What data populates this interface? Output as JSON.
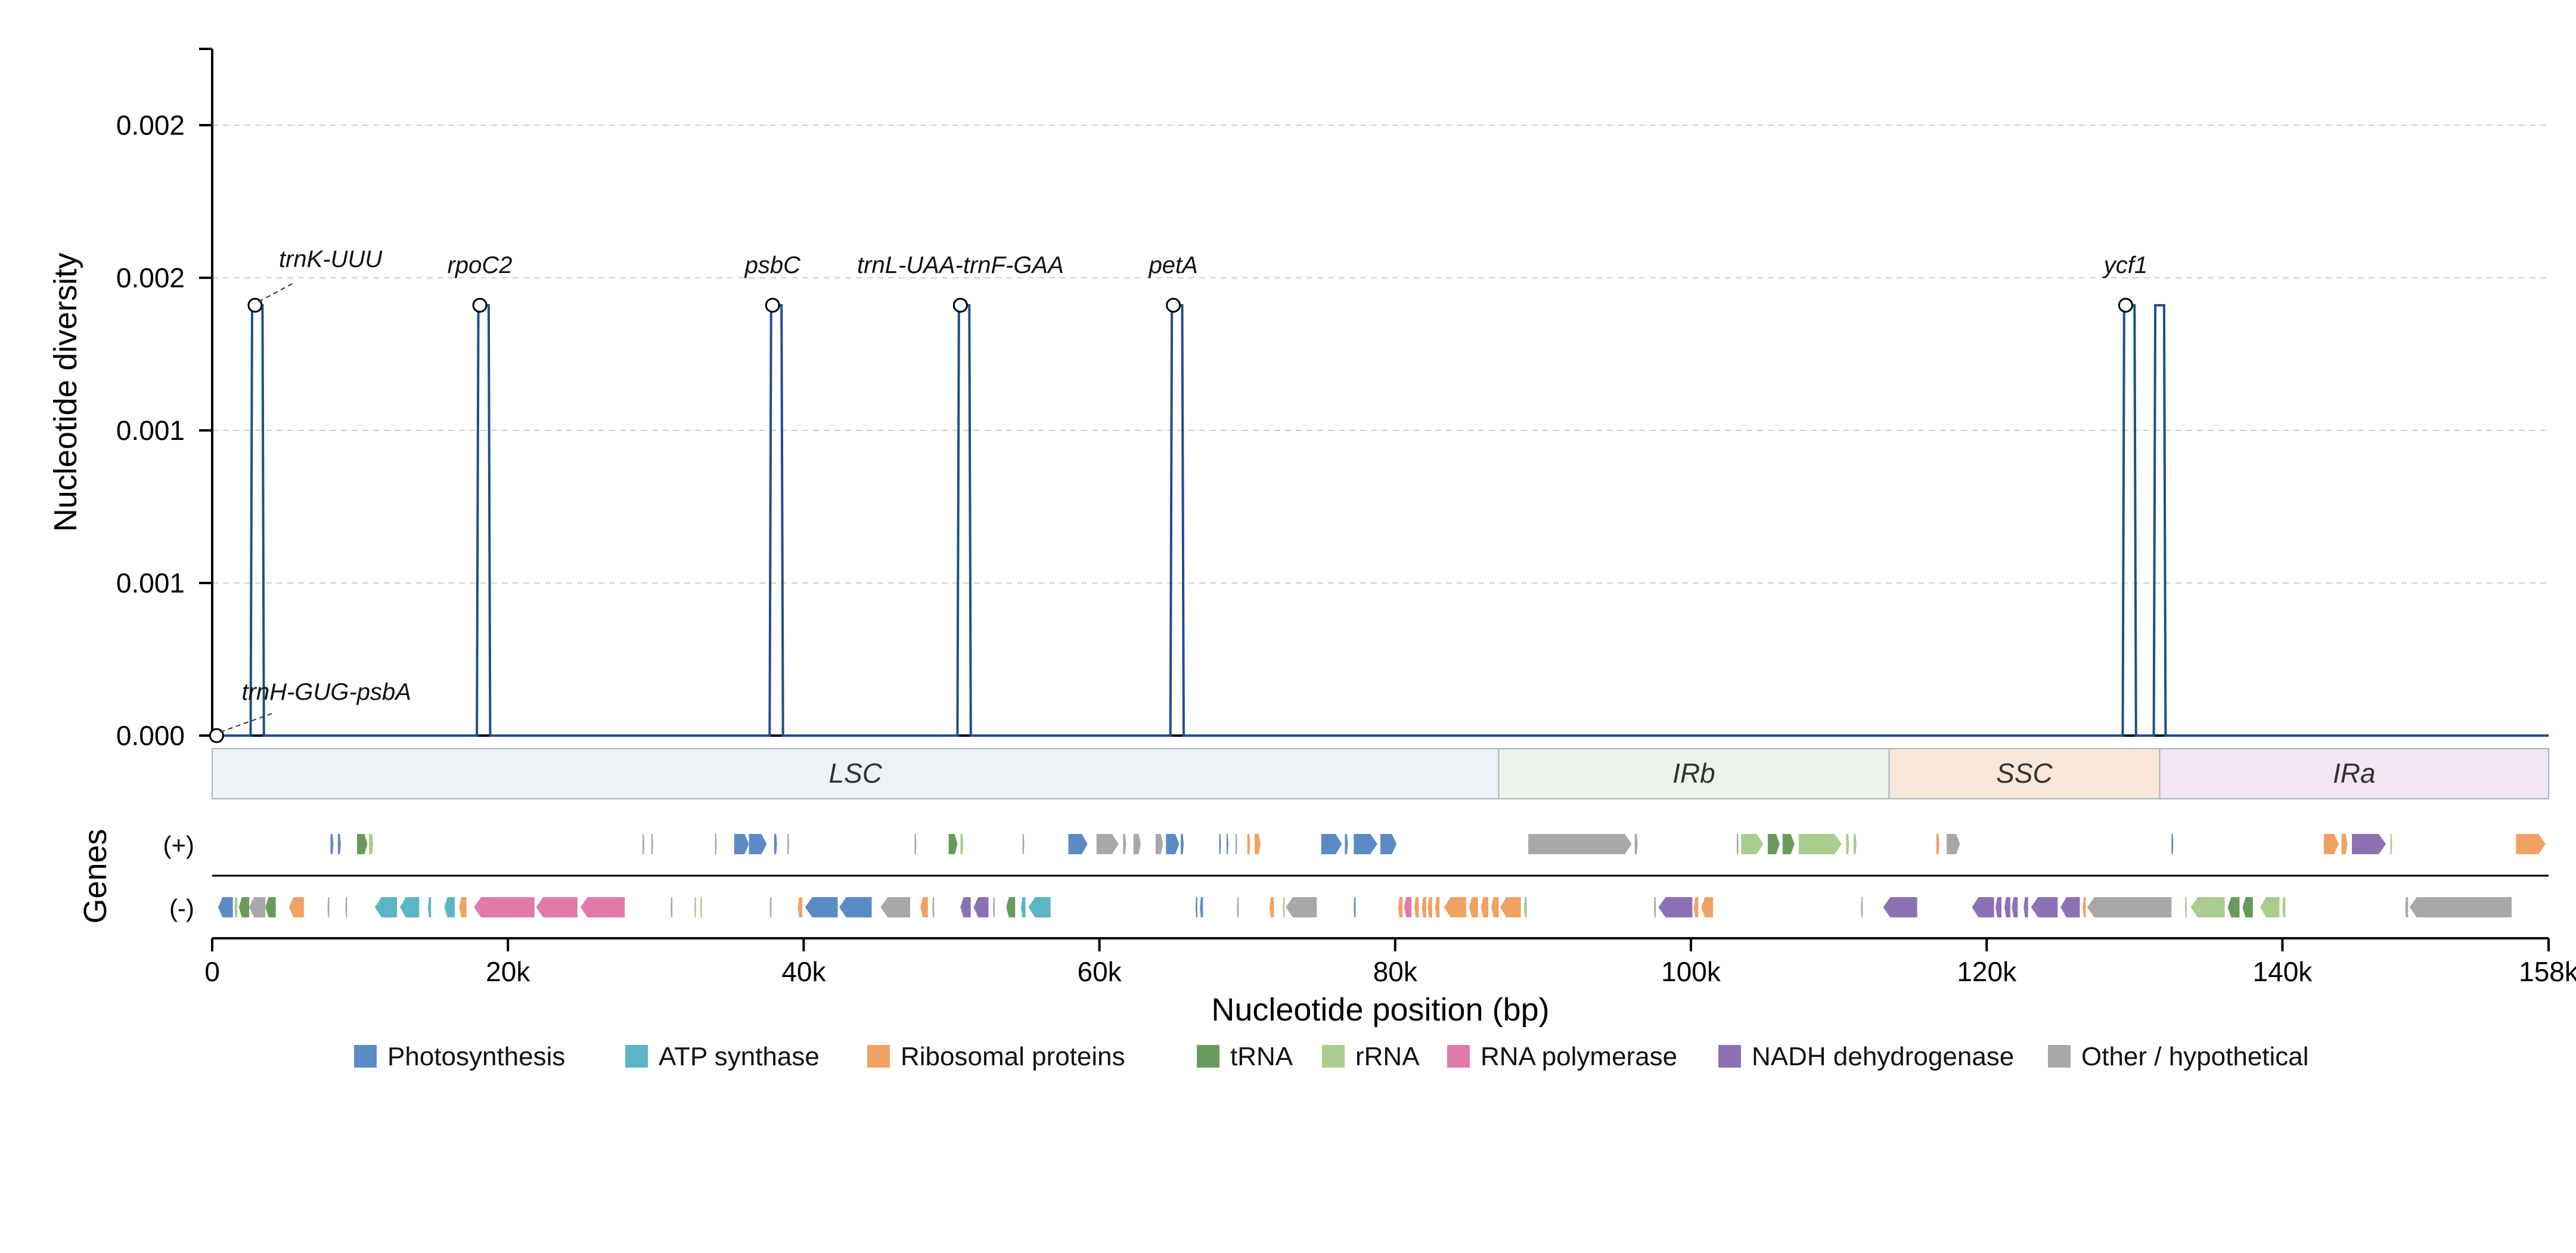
{
  "chart_data": {
    "type": "line",
    "ylabel": "Nucleotide diversity",
    "xlabel": "Nucleotide position (bp)",
    "genes_label": "Genes",
    "strand_plus_label": "(+)",
    "strand_minus_label": "(-)",
    "xlim": [
      0,
      158000
    ],
    "ylim": [
      0,
      0.00225
    ],
    "y_ticks": [
      0,
      0.0005,
      0.001,
      0.0015,
      0.002
    ],
    "y_tick_labels": [
      "0.000",
      "0.001",
      "0.001",
      "0.002",
      "0.002"
    ],
    "x_ticks": [
      0,
      20000,
      40000,
      60000,
      80000,
      100000,
      120000,
      140000,
      158000
    ],
    "x_tick_labels": [
      "0",
      "20k",
      "40k",
      "60k",
      "80k",
      "100k",
      "120k",
      "140k",
      "158k"
    ],
    "grid": "horizontal-dashed",
    "line_color": "#1f4e8c",
    "x": [
      0,
      2600,
      2700,
      3400,
      3500,
      17900,
      18000,
      18700,
      18800,
      37700,
      37800,
      38500,
      38600,
      50400,
      50500,
      51200,
      51300,
      64800,
      64900,
      65600,
      65700,
      129200,
      129300,
      130000,
      130100,
      131300,
      131400,
      132000,
      132100,
      158000
    ],
    "y": [
      0,
      0,
      0.00141,
      0.00141,
      0,
      0,
      0.00141,
      0.00141,
      0,
      0,
      0.00141,
      0.00141,
      0,
      0,
      0.00141,
      0.00141,
      0,
      0,
      0.00141,
      0.00141,
      0,
      0,
      0.00141,
      0.00141,
      0,
      0,
      0.00141,
      0.00141,
      0,
      0
    ],
    "peaks": [
      {
        "label": "trnK-UUU",
        "x": 2900,
        "y": 0.00141
      },
      {
        "label": "rpoC2",
        "x": 18100,
        "y": 0.00141
      },
      {
        "label": "psbC",
        "x": 37900,
        "y": 0.00141
      },
      {
        "label": "trnL-UAA-trnF-GAA",
        "x": 50600,
        "y": 0.00141
      },
      {
        "label": "petA",
        "x": 65000,
        "y": 0.00141
      },
      {
        "label": "ycf1",
        "x": 129400,
        "y": 0.00141
      },
      {
        "label": "trnH-GUG-psbA",
        "x": 300,
        "y": 0
      }
    ],
    "regions": [
      {
        "name": "LSC",
        "start": 0,
        "end": 87000,
        "color": "#eef2f6"
      },
      {
        "name": "IRb",
        "start": 87000,
        "end": 113400,
        "color": "#edf3ea"
      },
      {
        "name": "SSC",
        "start": 113400,
        "end": 131700,
        "color": "#f8e7d8"
      },
      {
        "name": "IRa",
        "start": 131700,
        "end": 158000,
        "color": "#f1e6f1"
      }
    ],
    "legend_position": "bottom-center",
    "legend": [
      {
        "key": "photo",
        "name": "Photosynthesis",
        "color": "#5b8bc4"
      },
      {
        "key": "atp",
        "name": "ATP synthase",
        "color": "#5bb5c4"
      },
      {
        "key": "ribo",
        "name": "Ribosomal proteins",
        "color": "#f0a262"
      },
      {
        "key": "trna",
        "name": "tRNA",
        "color": "#6a9a5b"
      },
      {
        "key": "rrna",
        "name": "rRNA",
        "color": "#a9cd8c"
      },
      {
        "key": "rnap",
        "name": "RNA polymerase",
        "color": "#e07aa8"
      },
      {
        "key": "ndh",
        "name": "NADH dehydrogenase",
        "color": "#8c72b5"
      },
      {
        "key": "other",
        "name": "Other / hypothetical",
        "color": "#a8a8a8"
      }
    ],
    "genes_plus": [
      [
        "photo",
        8000,
        8200
      ],
      [
        "photo",
        8500,
        8700
      ],
      [
        "trna",
        9800,
        10500
      ],
      [
        "rrna",
        10600,
        10900
      ],
      [
        "other",
        29100,
        29200
      ],
      [
        "other",
        29700,
        29800
      ],
      [
        "other",
        34000,
        34100
      ],
      [
        "photo",
        35300,
        36300
      ],
      [
        "photo",
        36300,
        37500
      ],
      [
        "photo",
        38000,
        38200
      ],
      [
        "other",
        38900,
        39000
      ],
      [
        "other",
        47500,
        47600
      ],
      [
        "trna",
        49800,
        50400
      ],
      [
        "rrna",
        50600,
        50800
      ],
      [
        "other",
        54800,
        54900
      ],
      [
        "photo",
        57900,
        59200
      ],
      [
        "other",
        59800,
        61300
      ],
      [
        "other",
        61600,
        61800
      ],
      [
        "other",
        62300,
        62800
      ],
      [
        "other",
        63800,
        64300
      ],
      [
        "photo",
        64500,
        65400
      ],
      [
        "photo",
        65500,
        65700
      ],
      [
        "photo",
        68100,
        68200
      ],
      [
        "photo",
        68600,
        68700
      ],
      [
        "other",
        69200,
        69300
      ],
      [
        "ribo",
        70000,
        70200
      ],
      [
        "ribo",
        70500,
        70900
      ],
      [
        "photo",
        75000,
        76400
      ],
      [
        "photo",
        76600,
        76800
      ],
      [
        "photo",
        77200,
        78800
      ],
      [
        "photo",
        79000,
        80100
      ],
      [
        "other",
        89000,
        96000
      ],
      [
        "other",
        96200,
        96400
      ],
      [
        "other",
        103100,
        103200
      ],
      [
        "rrna",
        103400,
        104900
      ],
      [
        "trna",
        105200,
        106000
      ],
      [
        "trna",
        106200,
        107000
      ],
      [
        "rrna",
        107300,
        110200
      ],
      [
        "rrna",
        110500,
        110700
      ],
      [
        "rrna",
        111000,
        111200
      ],
      [
        "ribo",
        116600,
        116800
      ],
      [
        "other",
        117300,
        118200
      ],
      [
        "photo",
        132500,
        132600
      ],
      [
        "ribo",
        142800,
        143800
      ],
      [
        "ribo",
        144000,
        144400
      ],
      [
        "ndh",
        144700,
        147000
      ],
      [
        "rrna",
        147300,
        147400
      ],
      [
        "ribo",
        155800,
        157800
      ]
    ],
    "genes_minus": [
      [
        "photo",
        400,
        1400
      ],
      [
        "rrna",
        1500,
        1700
      ],
      [
        "trna",
        1800,
        2500
      ],
      [
        "other",
        2500,
        3600
      ],
      [
        "trna",
        3600,
        4300
      ],
      [
        "ribo",
        5200,
        6200
      ],
      [
        "other",
        7800,
        7900
      ],
      [
        "other",
        9000,
        9100
      ],
      [
        "atp",
        11000,
        12500
      ],
      [
        "atp",
        12700,
        14000
      ],
      [
        "atp",
        14600,
        14800
      ],
      [
        "atp",
        15700,
        16400
      ],
      [
        "ribo",
        16700,
        17200
      ],
      [
        "rnap",
        17700,
        21800
      ],
      [
        "rnap",
        21900,
        24700
      ],
      [
        "rnap",
        24900,
        27900
      ],
      [
        "other",
        31000,
        31100
      ],
      [
        "rrna",
        32600,
        32700
      ],
      [
        "rrna",
        33000,
        33100
      ],
      [
        "other",
        37700,
        37800
      ],
      [
        "ribo",
        39600,
        39900
      ],
      [
        "photo",
        40100,
        42300
      ],
      [
        "photo",
        42400,
        44600
      ],
      [
        "other",
        45200,
        47200
      ],
      [
        "ribo",
        47900,
        48400
      ],
      [
        "other",
        48700,
        48800
      ],
      [
        "ndh",
        50600,
        51300
      ],
      [
        "ndh",
        51500,
        52500
      ],
      [
        "other",
        52800,
        52900
      ],
      [
        "trna",
        53700,
        54300
      ],
      [
        "atp",
        54700,
        55000
      ],
      [
        "atp",
        55200,
        56700
      ],
      [
        "photo",
        66500,
        66600
      ],
      [
        "photo",
        66800,
        67000
      ],
      [
        "other",
        69300,
        69400
      ],
      [
        "ribo",
        71500,
        71800
      ],
      [
        "rrna",
        72400,
        72500
      ],
      [
        "other",
        72600,
        74700
      ],
      [
        "photo",
        77200,
        77300
      ],
      [
        "ribo",
        80200,
        80500
      ],
      [
        "rnap",
        80600,
        81100
      ],
      [
        "ribo",
        81300,
        81600
      ],
      [
        "ribo",
        81800,
        82100
      ],
      [
        "ribo",
        82200,
        82500
      ],
      [
        "ribo",
        82700,
        83000
      ],
      [
        "ribo",
        83300,
        84800
      ],
      [
        "ribo",
        85000,
        85600
      ],
      [
        "ribo",
        85800,
        86300
      ],
      [
        "ribo",
        86500,
        87000
      ],
      [
        "ribo",
        87100,
        88500
      ],
      [
        "rrna",
        88700,
        88900
      ],
      [
        "other",
        97500,
        97600
      ],
      [
        "ndh",
        97800,
        100100
      ],
      [
        "ribo",
        100200,
        100500
      ],
      [
        "ribo",
        100700,
        101500
      ],
      [
        "other",
        111500,
        111600
      ],
      [
        "ndh",
        113000,
        115300
      ],
      [
        "ndh",
        119000,
        120500
      ],
      [
        "ndh",
        120600,
        121000
      ],
      [
        "ndh",
        121200,
        121600
      ],
      [
        "ndh",
        121700,
        122100
      ],
      [
        "ndh",
        122500,
        122800
      ],
      [
        "ndh",
        123000,
        124800
      ],
      [
        "ndh",
        125000,
        126300
      ],
      [
        "ribo",
        126500,
        126700
      ],
      [
        "other",
        126800,
        132500
      ],
      [
        "rrna",
        133400,
        133500
      ],
      [
        "rrna",
        133800,
        136100
      ],
      [
        "trna",
        136300,
        137100
      ],
      [
        "trna",
        137300,
        138000
      ],
      [
        "rrna",
        138500,
        139800
      ],
      [
        "rrna",
        140000,
        140200
      ],
      [
        "other",
        148300,
        148500
      ],
      [
        "other",
        148600,
        155500
      ]
    ]
  }
}
